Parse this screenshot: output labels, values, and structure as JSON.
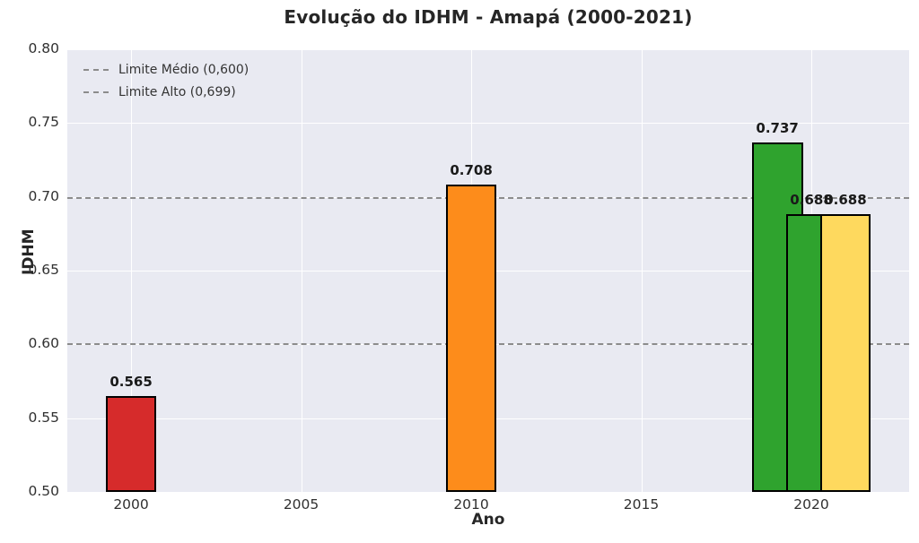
{
  "title": "Evolução do IDHM - Amapá (2000-2021)",
  "chart_data": {
    "type": "bar",
    "title": "Evolução do IDHM - Amapá (2000-2021)",
    "xlabel": "Ano",
    "ylabel": "IDHM",
    "xlim": [
      1998.125,
      2022.875
    ],
    "ylim": [
      0.5,
      0.8
    ],
    "x_ticks": [
      2000,
      2005,
      2010,
      2015,
      2020
    ],
    "x_tick_labels": [
      "2000",
      "2005",
      "2010",
      "2015",
      "2020"
    ],
    "y_ticks": [
      0.5,
      0.55,
      0.6,
      0.65,
      0.7,
      0.75,
      0.8
    ],
    "y_tick_labels": [
      "0.50",
      "0.55",
      "0.60",
      "0.65",
      "0.70",
      "0.75",
      "0.80"
    ],
    "grid": true,
    "legend_position": "upper-left",
    "bar_width_years": 1.5,
    "bar_edge_color": "#000000",
    "plot_bg_color": "#e9eaf2",
    "grid_color": "#ffffff",
    "bars": [
      {
        "year": 2000,
        "value": 0.565,
        "label": "0.565",
        "color": "#d62b2b"
      },
      {
        "year": 2010,
        "value": 0.708,
        "label": "0.708",
        "color": "#fd8c1b"
      },
      {
        "year": 2019,
        "value": 0.737,
        "label": "0.737",
        "color": "#2fa32e"
      },
      {
        "year": 2020,
        "value": 0.688,
        "label": "0.688",
        "color": "#2fa32e"
      },
      {
        "year": 2021,
        "value": 0.688,
        "label": "0.688",
        "color": "#fed95e"
      }
    ],
    "reference_lines": [
      {
        "value": 0.6,
        "label": "Limite Médio (0,600)",
        "color": "#8c8c8c",
        "style": "dashed"
      },
      {
        "value": 0.699,
        "label": "Limite Alto (0,699)",
        "color": "#8c8c8c",
        "style": "dashed"
      }
    ]
  }
}
